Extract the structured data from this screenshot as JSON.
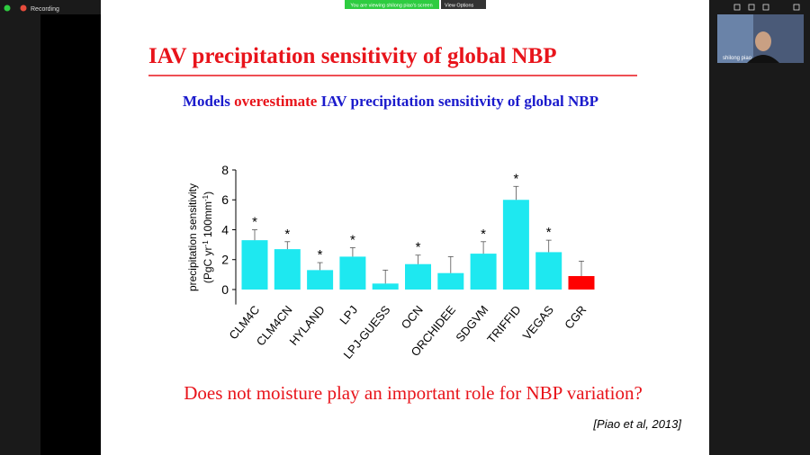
{
  "meeting": {
    "recording": "Recording",
    "banner": "You are viewing shilong piao's screen",
    "view_options": "View Options",
    "participant": "shilong piao"
  },
  "slide": {
    "title": "IAV precipitation sensitivity of global NBP",
    "subtitle": [
      "Models",
      "overestimate",
      "IAV precipitation sensitivity of global NBP"
    ],
    "question": "Does not moisture play an important role for NBP variation?",
    "citation": "[Piao et al, 2013]"
  },
  "chart_data": {
    "type": "bar",
    "y_label": [
      "precipitation sensitivity",
      "(PgC yr",
      "-1",
      " 100mm",
      "-1",
      ")"
    ],
    "categories": [
      "CLM4C",
      "CLM4CN",
      "HYLAND",
      "LPJ",
      "LPJ-GUESS",
      "OCN",
      "ORCHIDEE",
      "SDGVM",
      "TRIFFID",
      "VEGAS",
      "CGR"
    ],
    "values": [
      3.3,
      2.7,
      1.3,
      2.2,
      0.4,
      1.7,
      1.1,
      2.4,
      6.0,
      2.5,
      0.9
    ],
    "errors": [
      0.7,
      0.5,
      0.5,
      0.6,
      0.9,
      0.6,
      1.1,
      0.8,
      0.9,
      0.8,
      1.0
    ],
    "significance": [
      "*",
      "*",
      "*",
      "*",
      null,
      "*",
      null,
      "*",
      "*",
      "*",
      null
    ],
    "colors": [
      "#1ee8f0",
      "#1ee8f0",
      "#1ee8f0",
      "#1ee8f0",
      "#1ee8f0",
      "#1ee8f0",
      "#1ee8f0",
      "#1ee8f0",
      "#1ee8f0",
      "#1ee8f0",
      "#ff0000"
    ],
    "ylim": [
      -1,
      8
    ],
    "yticks": [
      0,
      2,
      4,
      6,
      8
    ],
    "grid": false
  }
}
